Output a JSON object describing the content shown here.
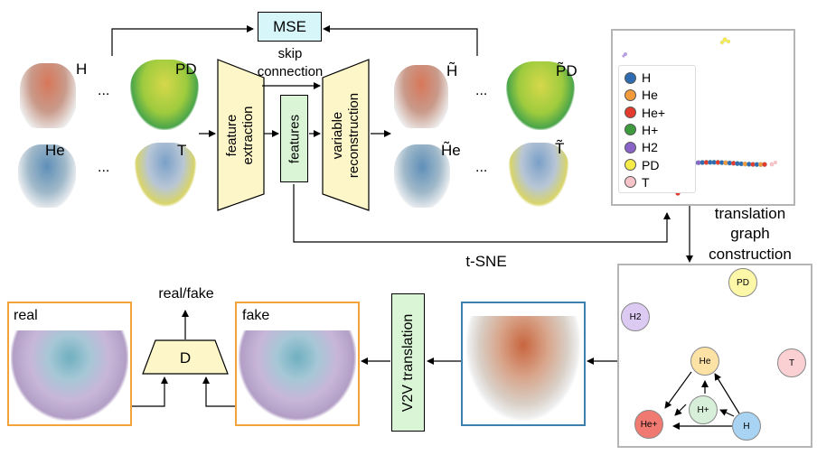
{
  "labels": {
    "mse": "MSE",
    "skip": "skip",
    "connection": "connection",
    "feature_extraction_1": "feature",
    "feature_extraction_2": "extraction",
    "features": "features",
    "variable_reconstruction_1": "variable",
    "variable_reconstruction_2": "reconstruction",
    "tsne": "t-SNE",
    "translation_graph_1": "translation",
    "translation_graph_2": "graph",
    "translation_graph_3": "construction",
    "real_fake": "real/fake",
    "discriminator": "D",
    "real": "real",
    "fake": "fake",
    "v2v_translation": "V2V translation",
    "ellipsis": "..."
  },
  "inputs": [
    "H",
    "PD",
    "He",
    "T"
  ],
  "outputs": [
    "H̃",
    "P̃D",
    "H̃e",
    "T̃"
  ],
  "legend": [
    {
      "label": "H",
      "color": "#2f6bb0"
    },
    {
      "label": "He",
      "color": "#f39a3c"
    },
    {
      "label": "He+",
      "color": "#e23b2e"
    },
    {
      "label": "H+",
      "color": "#3d9a3d"
    },
    {
      "label": "H2",
      "color": "#8a63c9"
    },
    {
      "label": "PD",
      "color": "#f5ec4a"
    },
    {
      "label": "T",
      "color": "#f6c4c8"
    }
  ],
  "graph_nodes": [
    {
      "label": "PD",
      "color": "#fdf8a8"
    },
    {
      "label": "H2",
      "color": "#dccaf2"
    },
    {
      "label": "T",
      "color": "#fbd0d3"
    },
    {
      "label": "He",
      "color": "#fde2a6"
    },
    {
      "label": "H+",
      "color": "#d7efd9"
    },
    {
      "label": "He+",
      "color": "#f07a72"
    },
    {
      "label": "H",
      "color": "#a9d3f2"
    }
  ],
  "colors": {
    "encoder": "#fdf6c9",
    "mse_box": "#d7f6fa",
    "features_box": "#d9f5d6",
    "frame_orange": "#f2a33a",
    "frame_blue": "#3f7fad",
    "frame_gray": "#b5b5b5"
  }
}
